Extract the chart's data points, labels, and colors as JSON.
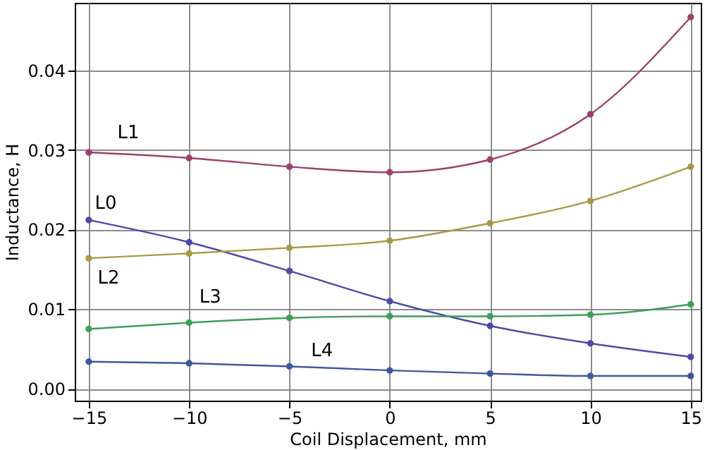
{
  "chart_data": {
    "type": "line",
    "xlabel": "Coil Displacement, mm",
    "ylabel": "Inductance, H",
    "x": [
      -15,
      -10,
      -5,
      0,
      5,
      10,
      15
    ],
    "series": [
      {
        "name": "L1",
        "color": "#9e3f6e",
        "values": [
          0.0297,
          0.029,
          0.0279,
          0.0272,
          0.0288,
          0.0345,
          0.0467
        ]
      },
      {
        "name": "L0",
        "color": "#4e4aa8",
        "values": [
          0.0212,
          0.0184,
          0.0148,
          0.011,
          0.0079,
          0.0057,
          0.004
        ]
      },
      {
        "name": "L2",
        "color": "#a89a45",
        "values": [
          0.0164,
          0.017,
          0.0177,
          0.0186,
          0.0208,
          0.0236,
          0.0279
        ]
      },
      {
        "name": "L3",
        "color": "#3f9e5a",
        "values": [
          0.0075,
          0.0083,
          0.0089,
          0.0091,
          0.0091,
          0.0093,
          0.0106
        ]
      },
      {
        "name": "L4",
        "color": "#3f57a0",
        "values": [
          0.0034,
          0.0032,
          0.0028,
          0.0023,
          0.0019,
          0.0016,
          0.0016
        ]
      }
    ],
    "xlim": [
      -15.7,
      15.5
    ],
    "ylim": [
      -0.0015,
      0.0485
    ],
    "xticks": [
      -15,
      -10,
      -5,
      0,
      5,
      10,
      15
    ],
    "yticks": [
      {
        "value": 0,
        "label": "0.00"
      },
      0.01,
      0.02,
      0.03,
      0.04
    ],
    "grid": true,
    "marker": "circle",
    "line_style": "solid",
    "legend": false
  }
}
